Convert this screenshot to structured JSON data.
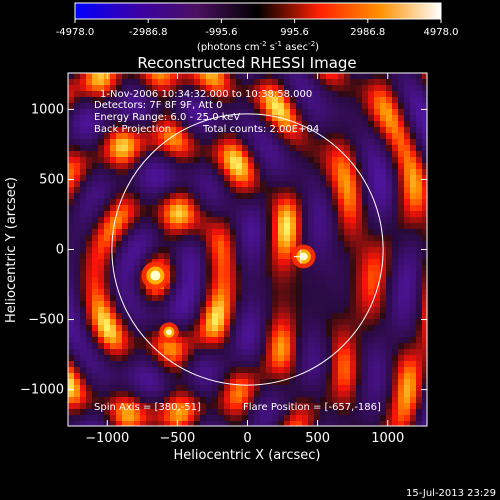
{
  "colorbar": {
    "ticks": [
      "-4978.0",
      "-2986.8",
      "-995.6",
      "995.6",
      "2986.8",
      "4978.0"
    ],
    "tick_values": [
      -4978.0,
      -2986.8,
      -995.6,
      995.6,
      2986.8,
      4978.0
    ],
    "units": {
      "prefix": "(photons cm",
      "exp1": "-2",
      "mid1": " s",
      "exp2": "-1",
      "mid2": " asec",
      "exp3": "-2",
      "suffix": ")"
    },
    "colors": [
      "#0000ff",
      "#3a00a8",
      "#4a1060",
      "#000000",
      "#ff2000",
      "#ff9000",
      "#ffffff"
    ]
  },
  "chart_data": {
    "type": "heatmap",
    "title": "Reconstructed RHESSI Image",
    "xlabel": "Heliocentric X (arcsec)",
    "ylabel": "Heliocentric Y (arcsec)",
    "xlim": [
      -1280,
      1280
    ],
    "ylim": [
      -1260,
      1260
    ],
    "x_ticks": [
      -1000,
      -500,
      0,
      500,
      1000
    ],
    "y_ticks": [
      -1000,
      -500,
      0,
      500,
      1000
    ],
    "x_tick_labels": [
      "−1000",
      "−500",
      "0",
      "500",
      "1000"
    ],
    "y_tick_labels": [
      "−1000",
      "−500",
      "0",
      "500",
      "1000"
    ],
    "zlim": [
      -4978.0,
      4978.0
    ],
    "solar_limb_radius": 967,
    "crosshair": [
      380,
      -51
    ],
    "sources": [
      {
        "x": -657,
        "y": -186,
        "peak": 4978.0
      },
      {
        "x": 400,
        "y": -50,
        "peak": 3200.0
      },
      {
        "x": -560,
        "y": -590,
        "peak": 1500.0
      }
    ],
    "annotations": {
      "time_range": "1-Nov-2006 10:34:32.000 to 10:38:58.000",
      "detectors": "Detectors: 7F 8F 9F, Att 0",
      "energy": "Energy Range: 6.0 - 25.0 keV",
      "method": "Back Projection",
      "counts": "Total counts: 2.00E+04",
      "spin_axis": "Spin Axis = [380,-51]",
      "flare_position": "Flare Position = [-657,-186]"
    },
    "timestamp": "15-Jul-2013 23:29"
  }
}
